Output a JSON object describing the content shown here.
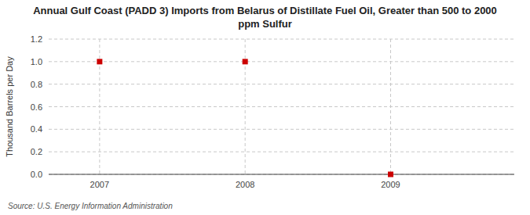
{
  "chart_data": {
    "type": "scatter",
    "title": "Annual Gulf Coast (PADD 3) Imports from Belarus of Distillate Fuel Oil, Greater than 500 to 2000\nppm Sulfur",
    "y_label": "Thousand Barrels per Day",
    "source": "Source: U.S. Energy Information Administration",
    "x": [
      2007,
      2008,
      2009
    ],
    "values": [
      1.0,
      1.0,
      0.0
    ],
    "xlim": [
      2006.65,
      2009.85
    ],
    "ylim": [
      0.0,
      1.2
    ],
    "xticks": [
      2007,
      2008,
      2009
    ],
    "yticks": [
      {
        "value": 0.0,
        "label": "0.0"
      },
      0.2,
      0.4,
      0.6,
      0.8,
      {
        "value": 1.0,
        "label": "1.0"
      },
      1.2
    ],
    "color": "#cc0000",
    "marker": "square",
    "grid": true
  }
}
